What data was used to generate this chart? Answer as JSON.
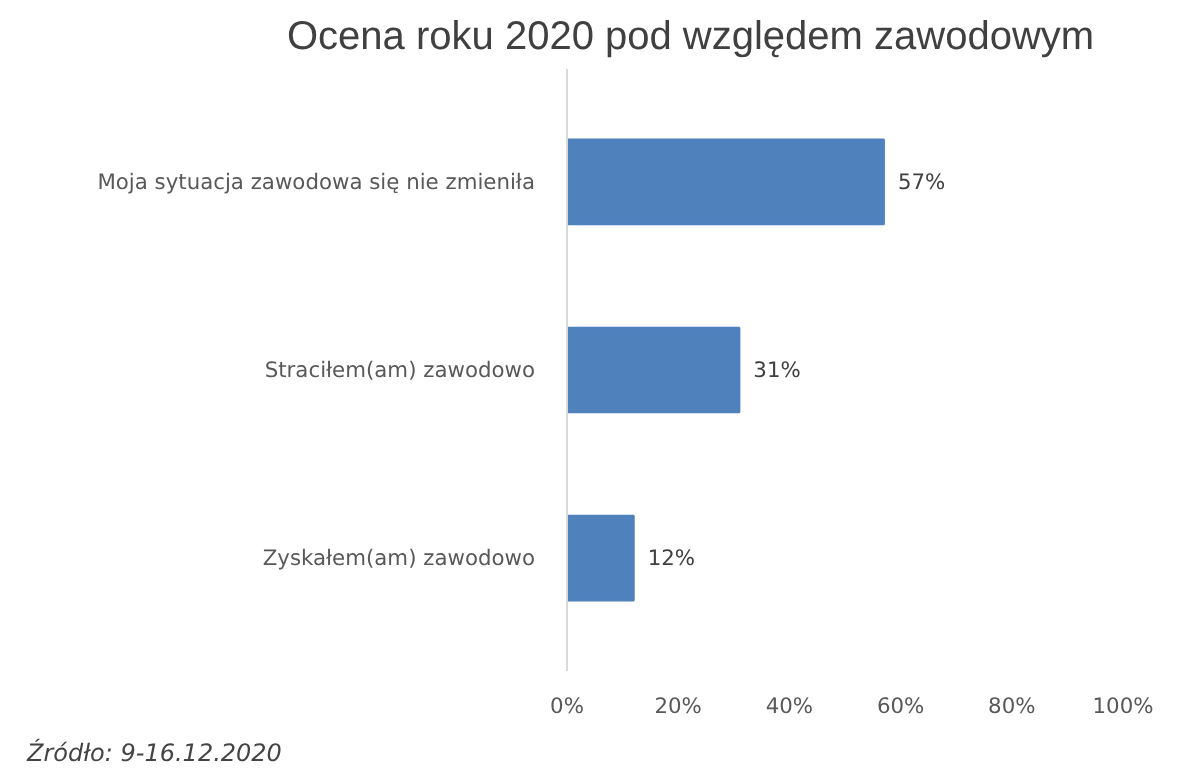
{
  "chart_data": {
    "type": "bar",
    "orientation": "horizontal",
    "title": "Ocena roku 2020 pod względem zawodowym",
    "categories": [
      "Moja sytuacja zawodowa się nie zmieniła",
      "Straciłem(am) zawodowo",
      "Zyskałem(am) zawodowo"
    ],
    "values": [
      57,
      31,
      12
    ],
    "color": "#4f81bd",
    "value_labels": [
      "57%",
      "31%",
      "12%"
    ],
    "xlim": [
      0,
      100
    ],
    "xticks": [
      {
        "value": 0,
        "label": "0%"
      },
      {
        "value": 20,
        "label": "20%"
      },
      {
        "value": 40,
        "label": "40%"
      },
      {
        "value": 60,
        "label": "60%"
      },
      {
        "value": 80,
        "label": "80%"
      },
      {
        "value": 100,
        "label": "100%"
      }
    ],
    "grid": false,
    "annotations": [
      "Źródło: 9-16.12.2020"
    ]
  }
}
